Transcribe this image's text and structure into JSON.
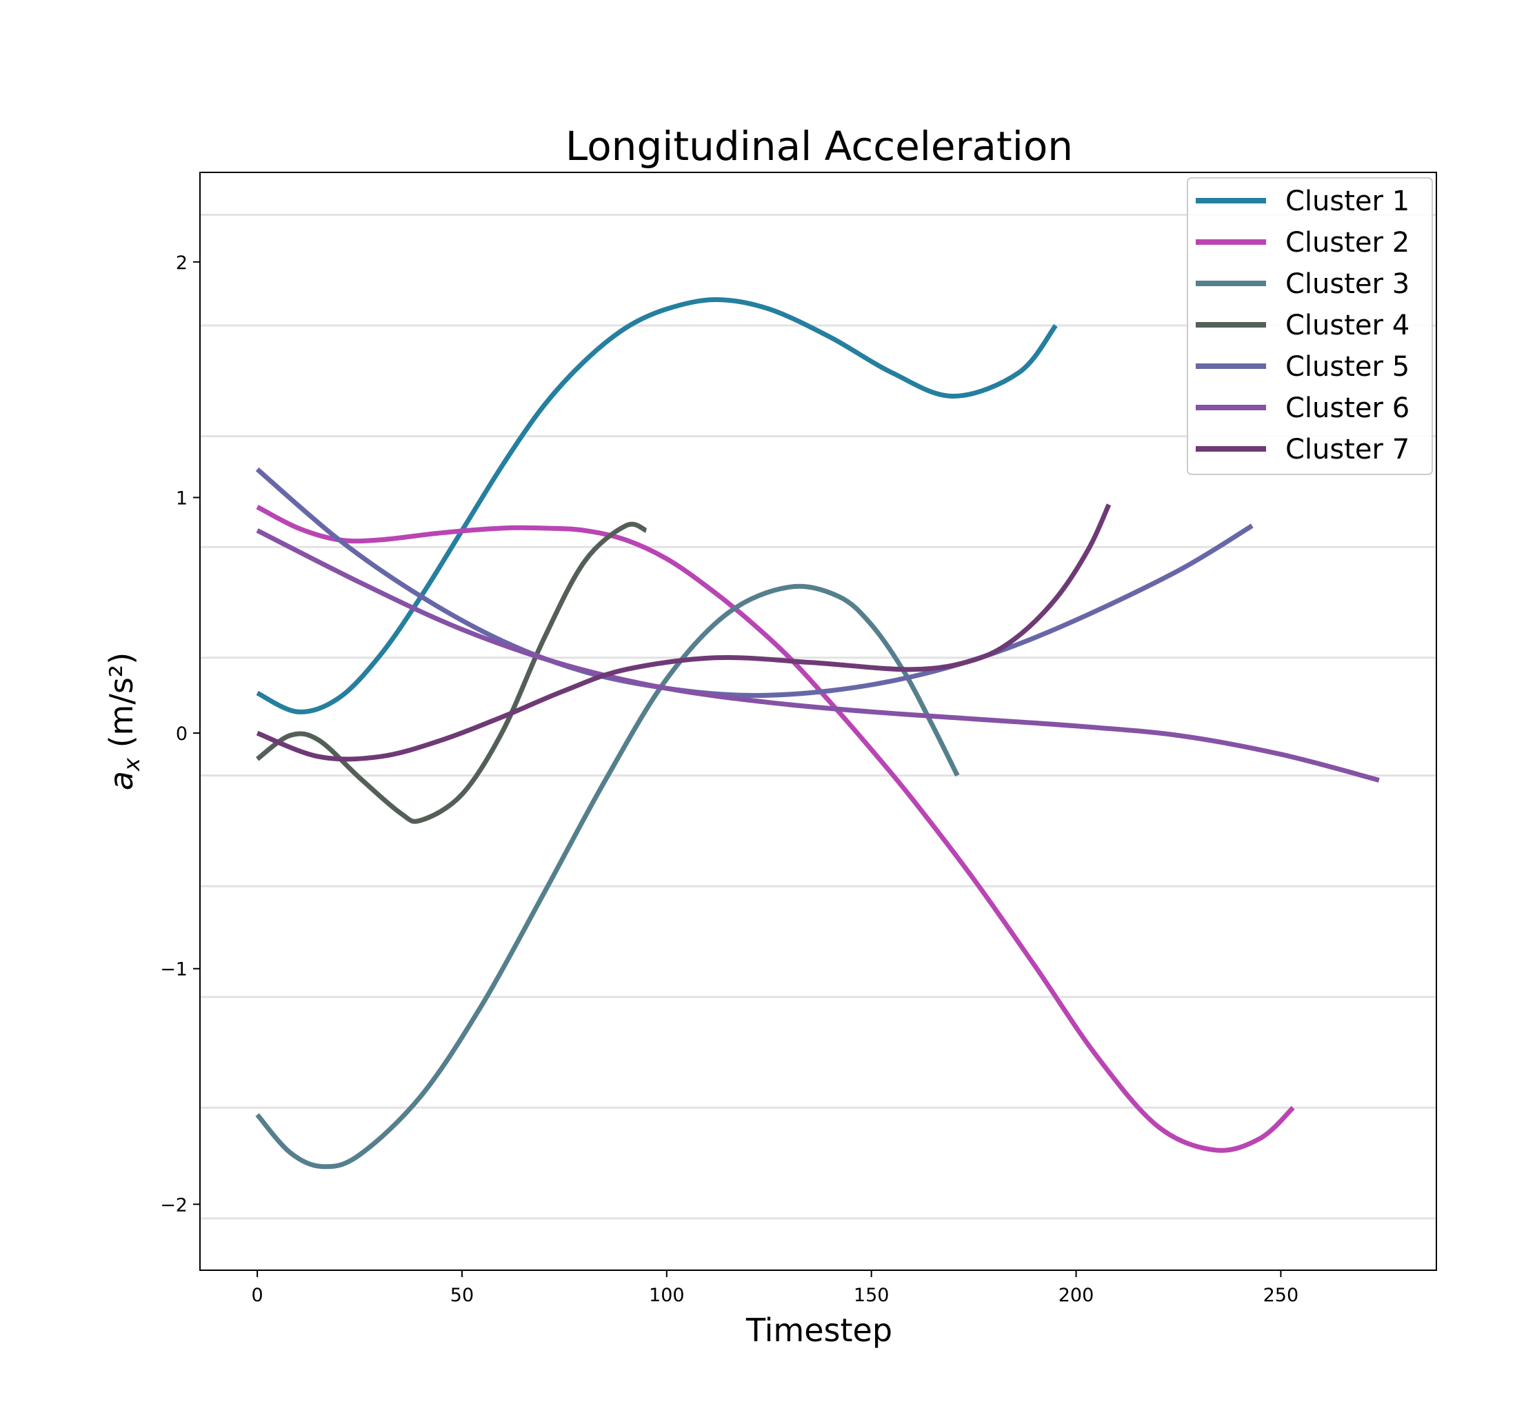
{
  "chart_data": {
    "type": "line",
    "title": "Longitudinal Acceleration",
    "xlabel": "Timestep",
    "ylabel": {
      "symbol": "a",
      "subscript": "x",
      "unit": " (m/s²)"
    },
    "xlim": [
      -14,
      288
    ],
    "ylim": [
      -2.28,
      2.38
    ],
    "xticks": [
      0,
      50,
      100,
      150,
      200,
      250
    ],
    "yticks": [
      -2,
      -1,
      0,
      1,
      2
    ],
    "ytick_labels": [
      "−2",
      "−1",
      "0",
      "1",
      "2"
    ],
    "grid": "horizontal",
    "grid_values": [
      2.2,
      1.73,
      1.26,
      0.79,
      0.32,
      -0.18,
      -0.65,
      -1.12,
      -1.59,
      -2.06
    ],
    "legend_position": "top-right",
    "series": [
      {
        "name": "Cluster 1",
        "color": "#257f9f",
        "x": [
          0,
          10,
          20,
          30,
          40,
          50,
          60,
          70,
          80,
          90,
          100,
          112,
          125,
          140,
          155,
          170,
          186,
          195
        ],
        "y": [
          0.17,
          0.09,
          0.15,
          0.33,
          0.58,
          0.86,
          1.14,
          1.39,
          1.58,
          1.72,
          1.8,
          1.84,
          1.8,
          1.68,
          1.53,
          1.43,
          1.53,
          1.73
        ]
      },
      {
        "name": "Cluster 2",
        "color": "#b945b4",
        "x": [
          0,
          10,
          20,
          30,
          45,
          60,
          70,
          80,
          90,
          100,
          110,
          120,
          130,
          140,
          150,
          160,
          175,
          190,
          205,
          220,
          234,
          245,
          253
        ],
        "y": [
          0.96,
          0.87,
          0.82,
          0.82,
          0.85,
          0.87,
          0.87,
          0.86,
          0.82,
          0.74,
          0.62,
          0.48,
          0.32,
          0.13,
          -0.07,
          -0.28,
          -0.62,
          -0.99,
          -1.37,
          -1.67,
          -1.77,
          -1.72,
          -1.59
        ]
      },
      {
        "name": "Cluster 3",
        "color": "#557f8d",
        "x": [
          0,
          8,
          16,
          25,
          40,
          55,
          70,
          85,
          100,
          115,
          130,
          142,
          150,
          158,
          165,
          171
        ],
        "y": [
          -1.62,
          -1.78,
          -1.84,
          -1.79,
          -1.54,
          -1.15,
          -0.68,
          -0.2,
          0.23,
          0.51,
          0.62,
          0.58,
          0.46,
          0.26,
          0.03,
          -0.18
        ]
      },
      {
        "name": "Cluster 4",
        "color": "#535f57",
        "x": [
          0,
          8,
          15,
          25,
          35,
          40,
          50,
          60,
          70,
          80,
          90,
          95
        ],
        "y": [
          -0.11,
          -0.01,
          -0.03,
          -0.19,
          -0.34,
          -0.37,
          -0.26,
          0.01,
          0.4,
          0.73,
          0.88,
          0.86
        ]
      },
      {
        "name": "Cluster 5",
        "color": "#6767a8",
        "x": [
          0,
          20,
          40,
          60,
          80,
          100,
          120,
          140,
          160,
          180,
          200,
          225,
          243
        ],
        "y": [
          1.12,
          0.82,
          0.58,
          0.39,
          0.26,
          0.19,
          0.16,
          0.18,
          0.24,
          0.34,
          0.48,
          0.69,
          0.88
        ]
      },
      {
        "name": "Cluster 6",
        "color": "#8552a6",
        "x": [
          0,
          25,
          50,
          75,
          100,
          125,
          150,
          175,
          200,
          225,
          250,
          274
        ],
        "y": [
          0.86,
          0.64,
          0.44,
          0.29,
          0.19,
          0.13,
          0.09,
          0.06,
          0.03,
          -0.01,
          -0.09,
          -0.2
        ]
      },
      {
        "name": "Cluster 7",
        "color": "#6e3a75",
        "x": [
          0,
          15,
          30,
          45,
          60,
          75,
          90,
          112,
          135,
          160,
          175,
          185,
          195,
          203,
          208
        ],
        "y": [
          0.0,
          -0.1,
          -0.1,
          -0.03,
          0.07,
          0.18,
          0.27,
          0.32,
          0.3,
          0.27,
          0.31,
          0.4,
          0.57,
          0.78,
          0.97
        ]
      }
    ]
  }
}
